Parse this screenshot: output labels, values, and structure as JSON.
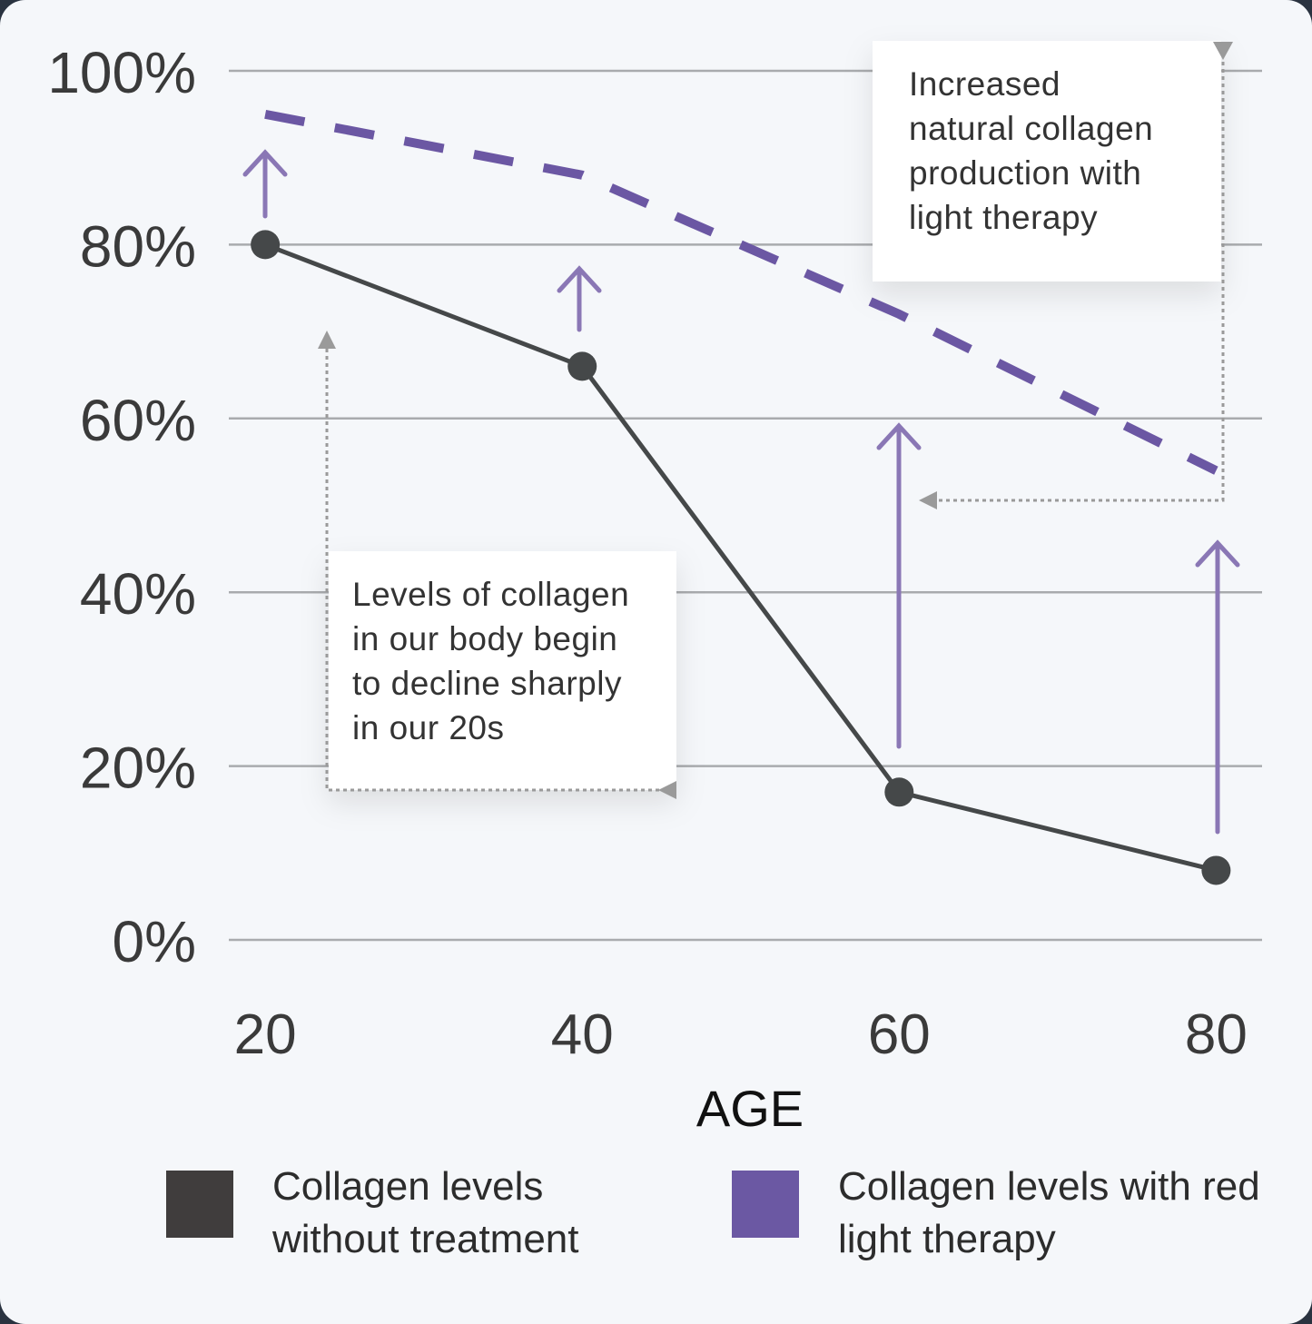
{
  "chart_data": {
    "type": "line",
    "xlabel": "AGE",
    "x": [
      20,
      40,
      60,
      80
    ],
    "xlim": [
      17.7,
      82.9
    ],
    "xticks": [
      20,
      40,
      60,
      80
    ],
    "ylim": [
      0,
      100
    ],
    "yticks": [
      {
        "value": 0,
        "label": "0%"
      },
      {
        "value": 20,
        "label": "20%"
      },
      {
        "value": 40,
        "label": "40%"
      },
      {
        "value": 60,
        "label": "60%"
      },
      {
        "value": 80,
        "label": "80%"
      },
      {
        "value": 100,
        "label": "100%"
      }
    ],
    "grid": true,
    "series": [
      {
        "name": "Collagen levels without treatment",
        "color": "#454849",
        "style": "solid",
        "values": [
          80,
          66,
          17,
          8
        ]
      },
      {
        "name": "Collagen levels with red light therapy",
        "color": "#6b57a3",
        "style": "dashed",
        "values": [
          95,
          88,
          72,
          54
        ]
      }
    ],
    "annotations": [
      {
        "lines": [
          "Increased",
          "natural collagen",
          "production with",
          "light therapy"
        ]
      },
      {
        "lines": [
          "Levels of collagen",
          "in our body begin",
          "to decline sharply",
          "in our 20s"
        ]
      }
    ]
  }
}
